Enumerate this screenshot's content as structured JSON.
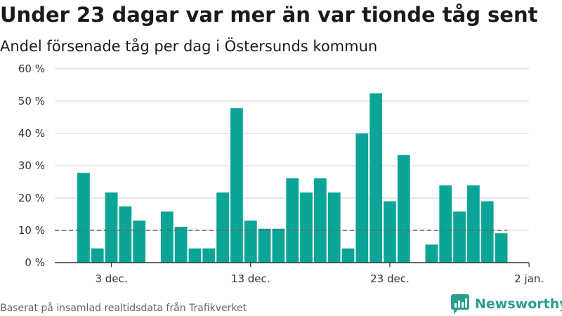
{
  "header": {
    "title": "Under 23 dagar var mer än var tionde tåg sent",
    "subtitle": "Andel försenade tåg per dag i Östersunds kommun"
  },
  "footer": {
    "source": "Baserat på insamlad realtidsdata från Trafikverket",
    "brand": "Newsworthy"
  },
  "colors": {
    "bar": "#0aa597",
    "reference_line": "#666666",
    "brand": "#2a9d8f"
  },
  "chart_data": {
    "type": "bar",
    "categories": [
      "1 dec.",
      "2 dec.",
      "3 dec.",
      "4 dec.",
      "5 dec.",
      "6 dec.",
      "7 dec.",
      "8 dec.",
      "9 dec.",
      "10 dec.",
      "11 dec.",
      "12 dec.",
      "13 dec.",
      "14 dec.",
      "15 dec.",
      "16 dec.",
      "17 dec.",
      "18 dec.",
      "19 dec.",
      "20 dec.",
      "21 dec.",
      "22 dec.",
      "23 dec.",
      "24 dec.",
      "25 dec.",
      "26 dec.",
      "27 dec.",
      "28 dec.",
      "29 dec.",
      "30 dec.",
      "31 dec."
    ],
    "values": [
      27.8,
      4.4,
      21.7,
      17.4,
      13.0,
      0,
      15.8,
      11.1,
      4.4,
      4.4,
      21.7,
      47.8,
      13.0,
      10.5,
      10.5,
      26.1,
      21.7,
      26.1,
      21.7,
      4.4,
      40.0,
      52.4,
      19.0,
      33.3,
      0,
      5.6,
      23.9,
      15.8,
      23.9,
      19.0,
      9.1
    ],
    "x_ticks": [
      "3 dec.",
      "13 dec.",
      "23 dec.",
      "2 jan."
    ],
    "y_ticks": [
      "0 %",
      "10 %",
      "20 %",
      "30 %",
      "40 %",
      "50 %",
      "60 %"
    ],
    "ylim": [
      0,
      60
    ],
    "reference_line": 10,
    "grid": true,
    "legend": "none"
  }
}
